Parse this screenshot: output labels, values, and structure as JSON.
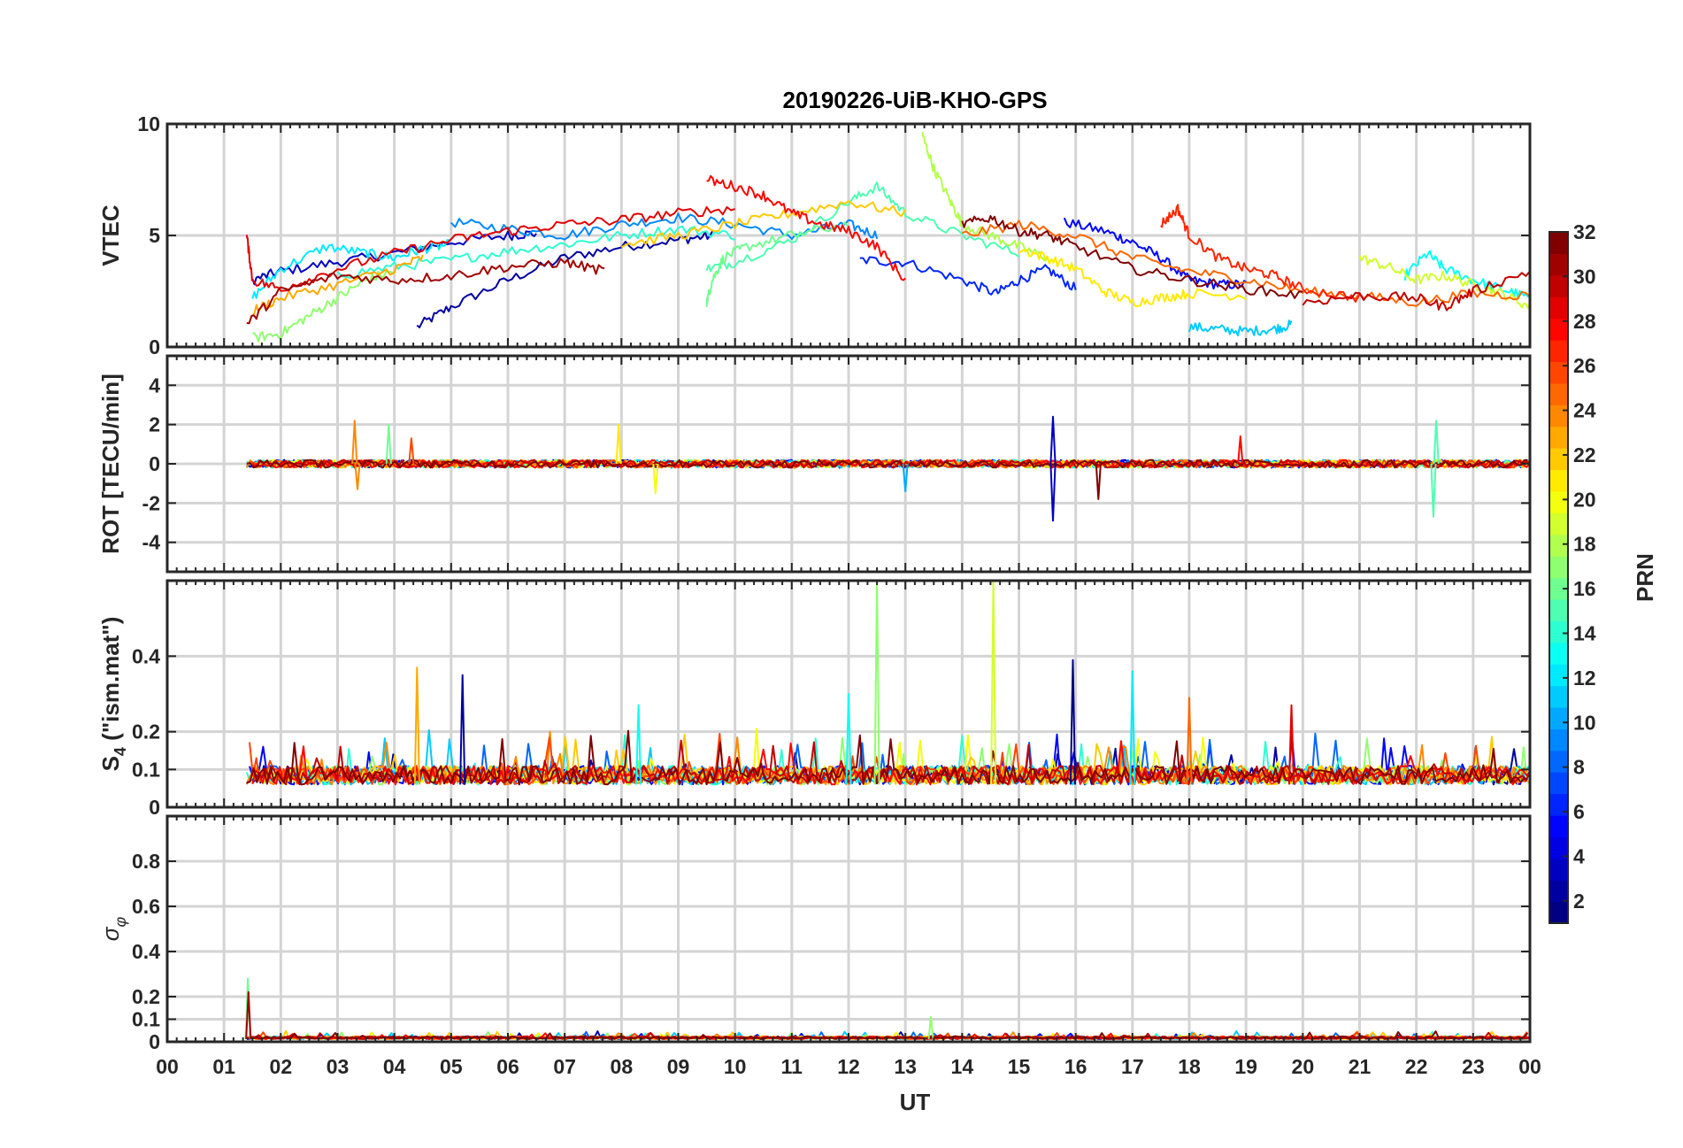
{
  "chart_data": {
    "type": "line",
    "title": "20190226-UiB-KHO-GPS",
    "xlabel": "UT",
    "x_range": [
      0,
      24
    ],
    "x_tick_labels": [
      "00",
      "01",
      "02",
      "03",
      "04",
      "05",
      "06",
      "07",
      "08",
      "09",
      "10",
      "11",
      "12",
      "13",
      "14",
      "15",
      "16",
      "17",
      "18",
      "19",
      "20",
      "21",
      "22",
      "23",
      "00"
    ],
    "colorbar": {
      "label": "PRN",
      "range": [
        1,
        32
      ],
      "ticks": [
        2,
        4,
        6,
        8,
        10,
        12,
        14,
        16,
        18,
        20,
        22,
        24,
        26,
        28,
        30,
        32
      ],
      "colormap": "jet"
    },
    "panels": [
      {
        "ylabel": "VTEC",
        "ylim": [
          0,
          10
        ],
        "yticks": [
          0,
          5,
          10
        ],
        "ytick_labels": [
          "0",
          "5",
          "10"
        ],
        "series": [
          {
            "prn": 2,
            "x": [
              4.4,
              5.0,
              6.0,
              7.0,
              8.0,
              9.0,
              9.6
            ],
            "y": [
              0.9,
              1.8,
              3.0,
              4.0,
              4.5,
              4.8,
              5.0
            ]
          },
          {
            "prn": 3,
            "x": [
              1.5,
              2.0,
              3.0,
              4.0,
              5.0,
              6.0,
              6.5
            ],
            "y": [
              3.0,
              3.4,
              3.8,
              4.2,
              4.7,
              5.0,
              5.1
            ]
          },
          {
            "prn": 5,
            "x": [
              15.8,
              16.5,
              17.0,
              17.5,
              18.0,
              18.5,
              19.0
            ],
            "y": [
              5.6,
              5.2,
              4.7,
              4.0,
              3.0,
              2.8,
              2.8
            ]
          },
          {
            "prn": 6,
            "x": [
              12.2,
              13.0,
              14.0,
              14.6,
              15.0,
              15.5,
              16.0
            ],
            "y": [
              3.9,
              3.8,
              3.0,
              2.4,
              3.0,
              3.5,
              2.6
            ]
          },
          {
            "prn": 9,
            "x": [
              5.0,
              6.0,
              7.0,
              8.0,
              9.0,
              10.0,
              11.0,
              12.0,
              12.5
            ],
            "y": [
              5.6,
              5.3,
              5.0,
              5.5,
              5.8,
              5.5,
              5.0,
              5.5,
              5.0
            ]
          },
          {
            "prn": 11,
            "x": [
              18.0,
              18.5,
              19.0,
              19.5,
              19.8
            ],
            "y": [
              0.9,
              0.8,
              0.7,
              0.8,
              1.0
            ]
          },
          {
            "prn": 12,
            "x": [
              1.5,
              2.0,
              2.8,
              3.5,
              4.0,
              4.5,
              5.0
            ],
            "y": [
              2.2,
              3.5,
              4.5,
              4.2,
              4.0,
              4.4,
              4.6
            ]
          },
          {
            "prn": 13,
            "x": [
              21.8,
              22.2,
              22.5,
              23.0,
              23.5,
              24.0
            ],
            "y": [
              3.2,
              4.2,
              3.5,
              3.0,
              2.6,
              2.2
            ]
          },
          {
            "prn": 14,
            "x": [
              3.0,
              4.0,
              5.0,
              6.0,
              7.0,
              8.0,
              9.0,
              10.0
            ],
            "y": [
              3.2,
              3.6,
              3.9,
              4.3,
              4.6,
              5.0,
              5.3,
              5.0
            ]
          },
          {
            "prn": 15,
            "x": [
              9.5,
              10.0,
              11.0,
              12.0,
              12.5,
              13.0,
              14.0,
              15.0
            ],
            "y": [
              3.5,
              3.8,
              4.8,
              6.5,
              7.2,
              6.0,
              5.0,
              4.2
            ]
          },
          {
            "prn": 16,
            "x": [
              9.5,
              9.6,
              9.8,
              10.2,
              11.0,
              12.0
            ],
            "y": [
              2.0,
              3.0,
              4.0,
              4.5,
              5.0,
              5.5
            ]
          },
          {
            "prn": 17,
            "x": [
              1.5,
              2.0,
              2.5,
              3.0,
              3.5,
              4.0
            ],
            "y": [
              0.4,
              0.6,
              1.4,
              2.2,
              3.0,
              3.4
            ]
          },
          {
            "prn": 18,
            "x": [
              13.3,
              13.5,
              13.8,
              14.0,
              14.5,
              15.0,
              15.5
            ],
            "y": [
              9.5,
              8.0,
              6.5,
              5.5,
              5.0,
              4.5,
              4.0
            ]
          },
          {
            "prn": 19,
            "x": [
              21.0,
              21.5,
              22.0,
              22.5,
              23.0,
              23.5,
              24.0
            ],
            "y": [
              4.0,
              3.6,
              3.0,
              3.2,
              2.8,
              2.4,
              1.8
            ]
          },
          {
            "prn": 21,
            "x": [
              15.0,
              15.5,
              16.0,
              16.5,
              17.0,
              17.5,
              18.0,
              19.0
            ],
            "y": [
              4.4,
              4.0,
              3.5,
              2.5,
              2.0,
              2.2,
              2.4,
              2.3
            ]
          },
          {
            "prn": 22,
            "x": [
              8.0,
              9.0,
              10.0,
              11.0,
              12.0,
              13.0
            ],
            "y": [
              4.6,
              5.0,
              5.5,
              6.0,
              6.5,
              6.0
            ]
          },
          {
            "prn": 23,
            "x": [
              1.5,
              2.0,
              3.0,
              4.0,
              4.5
            ],
            "y": [
              1.6,
              2.2,
              2.8,
              3.5,
              4.0
            ]
          },
          {
            "prn": 25,
            "x": [
              14.0,
              15.0,
              16.0,
              17.0,
              18.0,
              19.0,
              20.0,
              21.0,
              22.0,
              23.0,
              24.0
            ],
            "y": [
              5.0,
              5.5,
              5.0,
              4.0,
              3.4,
              3.0,
              2.5,
              2.3,
              2.0,
              2.4,
              2.3
            ]
          },
          {
            "prn": 27,
            "x": [
              17.5,
              17.8,
              18.0,
              18.5,
              19.0,
              19.5,
              20.0,
              21.0
            ],
            "y": [
              5.5,
              6.2,
              5.0,
              4.0,
              3.5,
              3.2,
              2.6,
              2.2
            ]
          },
          {
            "prn": 28,
            "x": [
              9.5,
              10.0,
              10.5,
              11.0,
              11.5,
              12.0,
              12.5,
              13.0
            ],
            "y": [
              7.5,
              7.2,
              6.8,
              6.0,
              5.5,
              5.2,
              4.5,
              3.0
            ]
          },
          {
            "prn": 29,
            "x": [
              1.4,
              1.5,
              2.0,
              3.0,
              4.0,
              5.0,
              6.0,
              7.0,
              8.0,
              9.0,
              10.0
            ],
            "y": [
              5.0,
              3.0,
              2.6,
              3.5,
              4.2,
              4.8,
              5.2,
              5.5,
              5.7,
              6.0,
              6.2
            ]
          },
          {
            "prn": 30,
            "x": [
              20.0,
              21.0,
              22.0,
              22.5,
              23.0,
              24.0
            ],
            "y": [
              2.0,
              2.3,
              2.2,
              1.8,
              2.5,
              3.4
            ]
          },
          {
            "prn": 31,
            "x": [
              1.4,
              2.0,
              3.0,
              4.0,
              5.0,
              6.0,
              7.0,
              7.7
            ],
            "y": [
              1.0,
              2.5,
              3.2,
              3.0,
              3.2,
              3.6,
              3.8,
              3.4
            ]
          },
          {
            "prn": 32,
            "x": [
              14.0,
              14.5,
              15.0,
              15.5,
              16.0,
              17.0,
              18.0,
              19.0,
              20.0
            ],
            "y": [
              5.5,
              5.8,
              5.2,
              5.0,
              4.5,
              3.5,
              3.0,
              2.6,
              2.3
            ]
          }
        ]
      },
      {
        "ylabel": "ROT [TECU/min]",
        "ylim": [
          -5.5,
          5.5
        ],
        "yticks": [
          -4,
          -2,
          0,
          2,
          4
        ],
        "ytick_labels": [
          "-4",
          "-2",
          "0",
          "2",
          "4"
        ],
        "baseline_noise": 0.2,
        "spikes": [
          {
            "x": 3.3,
            "y": 2.2,
            "prn": 24
          },
          {
            "x": 3.35,
            "y": -1.3,
            "prn": 24
          },
          {
            "x": 3.9,
            "y": 2.0,
            "prn": 16
          },
          {
            "x": 4.3,
            "y": 1.3,
            "prn": 26
          },
          {
            "x": 7.95,
            "y": 2.0,
            "prn": 21
          },
          {
            "x": 8.6,
            "y": -1.5,
            "prn": 20
          },
          {
            "x": 13.0,
            "y": -1.4,
            "prn": 10
          },
          {
            "x": 15.6,
            "y": 2.4,
            "prn": 3
          },
          {
            "x": 15.6,
            "y": -2.9,
            "prn": 3
          },
          {
            "x": 16.4,
            "y": -1.8,
            "prn": 32
          },
          {
            "x": 18.9,
            "y": 1.4,
            "prn": 28
          },
          {
            "x": 22.35,
            "y": 2.2,
            "prn": 15
          },
          {
            "x": 22.3,
            "y": -2.7,
            "prn": 15
          }
        ]
      },
      {
        "ylabel": "S4 (\"ism.mat\")",
        "ylabel_main": "S",
        "ylabel_sub": "4",
        "ylabel_rest": " (\"ism.mat\")",
        "ylim": [
          0,
          0.6
        ],
        "yticks": [
          0,
          0.1,
          0.2,
          0.4
        ],
        "ytick_labels": [
          "0",
          "0.1",
          "0.2",
          "0.4"
        ],
        "spikes": [
          {
            "x": 4.4,
            "y": 0.37,
            "prn": 23
          },
          {
            "x": 5.2,
            "y": 0.35,
            "prn": 2
          },
          {
            "x": 12.5,
            "y": 0.6,
            "prn": 17
          },
          {
            "x": 14.55,
            "y": 0.6,
            "prn": 19
          },
          {
            "x": 15.95,
            "y": 0.39,
            "prn": 1
          },
          {
            "x": 17.0,
            "y": 0.36,
            "prn": 12
          },
          {
            "x": 18.0,
            "y": 0.29,
            "prn": 25
          },
          {
            "x": 19.8,
            "y": 0.27,
            "prn": 29
          },
          {
            "x": 8.3,
            "y": 0.27,
            "prn": 13
          },
          {
            "x": 12.0,
            "y": 0.3,
            "prn": 13
          }
        ]
      },
      {
        "ylabel": "σ φ",
        "ylabel_main": "σ",
        "ylabel_sub": "φ",
        "ylim": [
          0,
          1.0
        ],
        "yticks": [
          0,
          0.1,
          0.2,
          0.4,
          0.6,
          0.8
        ],
        "ytick_labels": [
          "0",
          "0.1",
          "0.2",
          "0.4",
          "0.6",
          "0.8"
        ],
        "spikes": [
          {
            "x": 1.42,
            "y": 0.28,
            "prn": 16
          },
          {
            "x": 1.43,
            "y": 0.22,
            "prn": 31
          },
          {
            "x": 13.45,
            "y": 0.11,
            "prn": 17
          }
        ]
      }
    ]
  }
}
